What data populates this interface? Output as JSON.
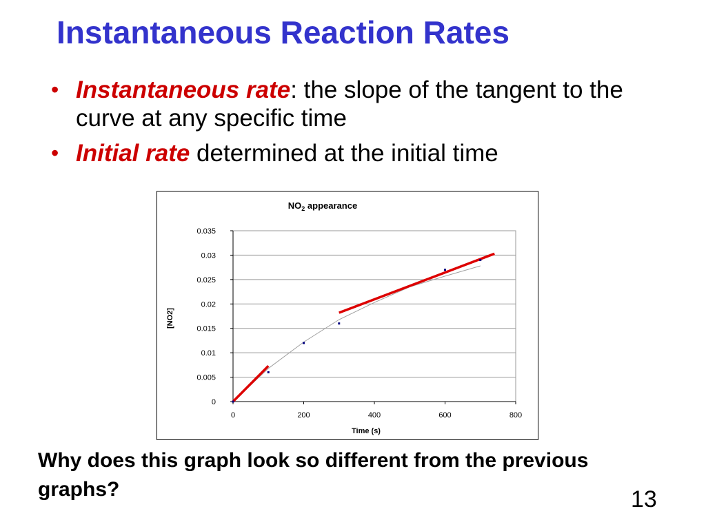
{
  "slide": {
    "title": "Instantaneous Reaction Rates",
    "bullets": [
      {
        "term": "Instantaneous rate",
        "sep": ":",
        "rest": " the slope of the tangent to the curve at any specific time"
      },
      {
        "term": "Initial rate",
        "sep": "",
        "rest": " determined at the initial time"
      }
    ],
    "question": "Why does this graph look so different from the previous graphs?",
    "page_number": "13",
    "colors": {
      "title": "#3333cc",
      "term": "#cc0000",
      "tangent": "#dd0000",
      "points": "#000080",
      "curve": "#a0a0a0"
    }
  },
  "chart_data": {
    "type": "scatter",
    "title_main": "NO",
    "title_sub": "2",
    "title_rest": " appearance",
    "xlabel": "Time (s)",
    "ylabel": "[NO2]",
    "xlim": [
      0,
      800
    ],
    "ylim": [
      0,
      0.035
    ],
    "x_ticks": [
      0,
      200,
      400,
      600,
      800
    ],
    "x_tick_labels": [
      "0",
      "200",
      "400",
      "600",
      "800"
    ],
    "y_ticks": [
      0,
      0.005,
      0.01,
      0.015,
      0.02,
      0.025,
      0.03,
      0.035
    ],
    "y_tick_labels": [
      "0",
      "0.005",
      "0.01",
      "0.015",
      "0.02",
      "0.025",
      "0.03",
      "0.035"
    ],
    "grid": "horizontal",
    "series": [
      {
        "x": [
          0,
          100,
          200,
          300,
          600,
          700
        ],
        "y": [
          0,
          0.006,
          0.012,
          0.016,
          0.027,
          0.029
        ]
      }
    ],
    "trend_curve": {
      "x": [
        0,
        100,
        200,
        300,
        400,
        500,
        600,
        700
      ],
      "y": [
        0,
        0.0068,
        0.0122,
        0.0168,
        0.0203,
        0.0235,
        0.0257,
        0.0278
      ]
    },
    "tangent_lines": [
      {
        "x": [
          0,
          100
        ],
        "y": [
          0,
          0.0073
        ]
      },
      {
        "x": [
          300,
          740
        ],
        "y": [
          0.0182,
          0.0303
        ]
      }
    ]
  }
}
